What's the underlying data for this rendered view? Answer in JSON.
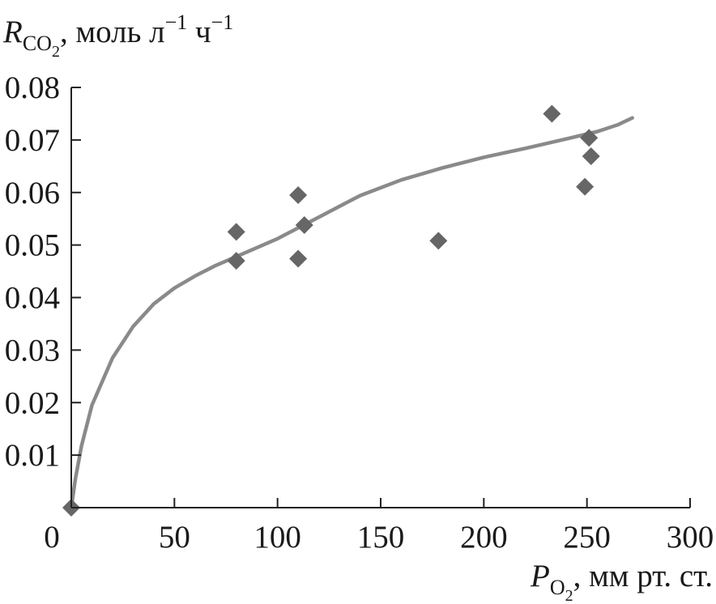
{
  "chart_data": {
    "type": "scatter",
    "xlabel": {
      "main": "P",
      "sub": "O",
      "subsub": "2",
      "rest": ", мм рт. ст."
    },
    "ylabel": {
      "main": "R",
      "sub": "CO",
      "subsub": "2",
      "unit1": ", моль л",
      "sup1": "−1",
      "unit2": " ч",
      "sup2": "−1"
    },
    "xlim": [
      0,
      300
    ],
    "ylim": [
      0,
      0.08
    ],
    "x_ticks": [
      0,
      50,
      100,
      150,
      200,
      250,
      300
    ],
    "x_tick_labels": [
      "0",
      "50",
      "100",
      "150",
      "200",
      "250",
      "300"
    ],
    "y_ticks": [
      0.01,
      0.02,
      0.03,
      0.04,
      0.05,
      0.06,
      0.07,
      0.08
    ],
    "y_tick_labels": [
      "0.01",
      "0.02",
      "0.03",
      "0.04",
      "0.05",
      "0.06",
      "0.07",
      "0.08"
    ],
    "grid": false,
    "marker": "diamond",
    "marker_color": "#666666",
    "curve_color": "#8a8a8a",
    "points": [
      {
        "x": 0,
        "y": 0.0
      },
      {
        "x": 80,
        "y": 0.0525
      },
      {
        "x": 80,
        "y": 0.047
      },
      {
        "x": 110,
        "y": 0.0595
      },
      {
        "x": 110,
        "y": 0.0474
      },
      {
        "x": 113,
        "y": 0.0538
      },
      {
        "x": 178,
        "y": 0.0508
      },
      {
        "x": 233,
        "y": 0.075
      },
      {
        "x": 249,
        "y": 0.0611
      },
      {
        "x": 251,
        "y": 0.0704
      },
      {
        "x": 252,
        "y": 0.0669
      }
    ],
    "fit_curve": [
      {
        "x": 0,
        "y": 0.0
      },
      {
        "x": 2,
        "y": 0.0055
      },
      {
        "x": 5,
        "y": 0.0118
      },
      {
        "x": 10,
        "y": 0.0195
      },
      {
        "x": 20,
        "y": 0.0285
      },
      {
        "x": 30,
        "y": 0.0345
      },
      {
        "x": 40,
        "y": 0.0388
      },
      {
        "x": 50,
        "y": 0.0418
      },
      {
        "x": 60,
        "y": 0.0441
      },
      {
        "x": 70,
        "y": 0.0461
      },
      {
        "x": 80,
        "y": 0.0478
      },
      {
        "x": 100,
        "y": 0.0512
      },
      {
        "x": 120,
        "y": 0.0553
      },
      {
        "x": 140,
        "y": 0.0594
      },
      {
        "x": 160,
        "y": 0.0624
      },
      {
        "x": 180,
        "y": 0.0647
      },
      {
        "x": 200,
        "y": 0.0667
      },
      {
        "x": 220,
        "y": 0.0684
      },
      {
        "x": 240,
        "y": 0.0702
      },
      {
        "x": 255,
        "y": 0.0716
      },
      {
        "x": 265,
        "y": 0.0729
      },
      {
        "x": 272,
        "y": 0.0742
      }
    ]
  }
}
